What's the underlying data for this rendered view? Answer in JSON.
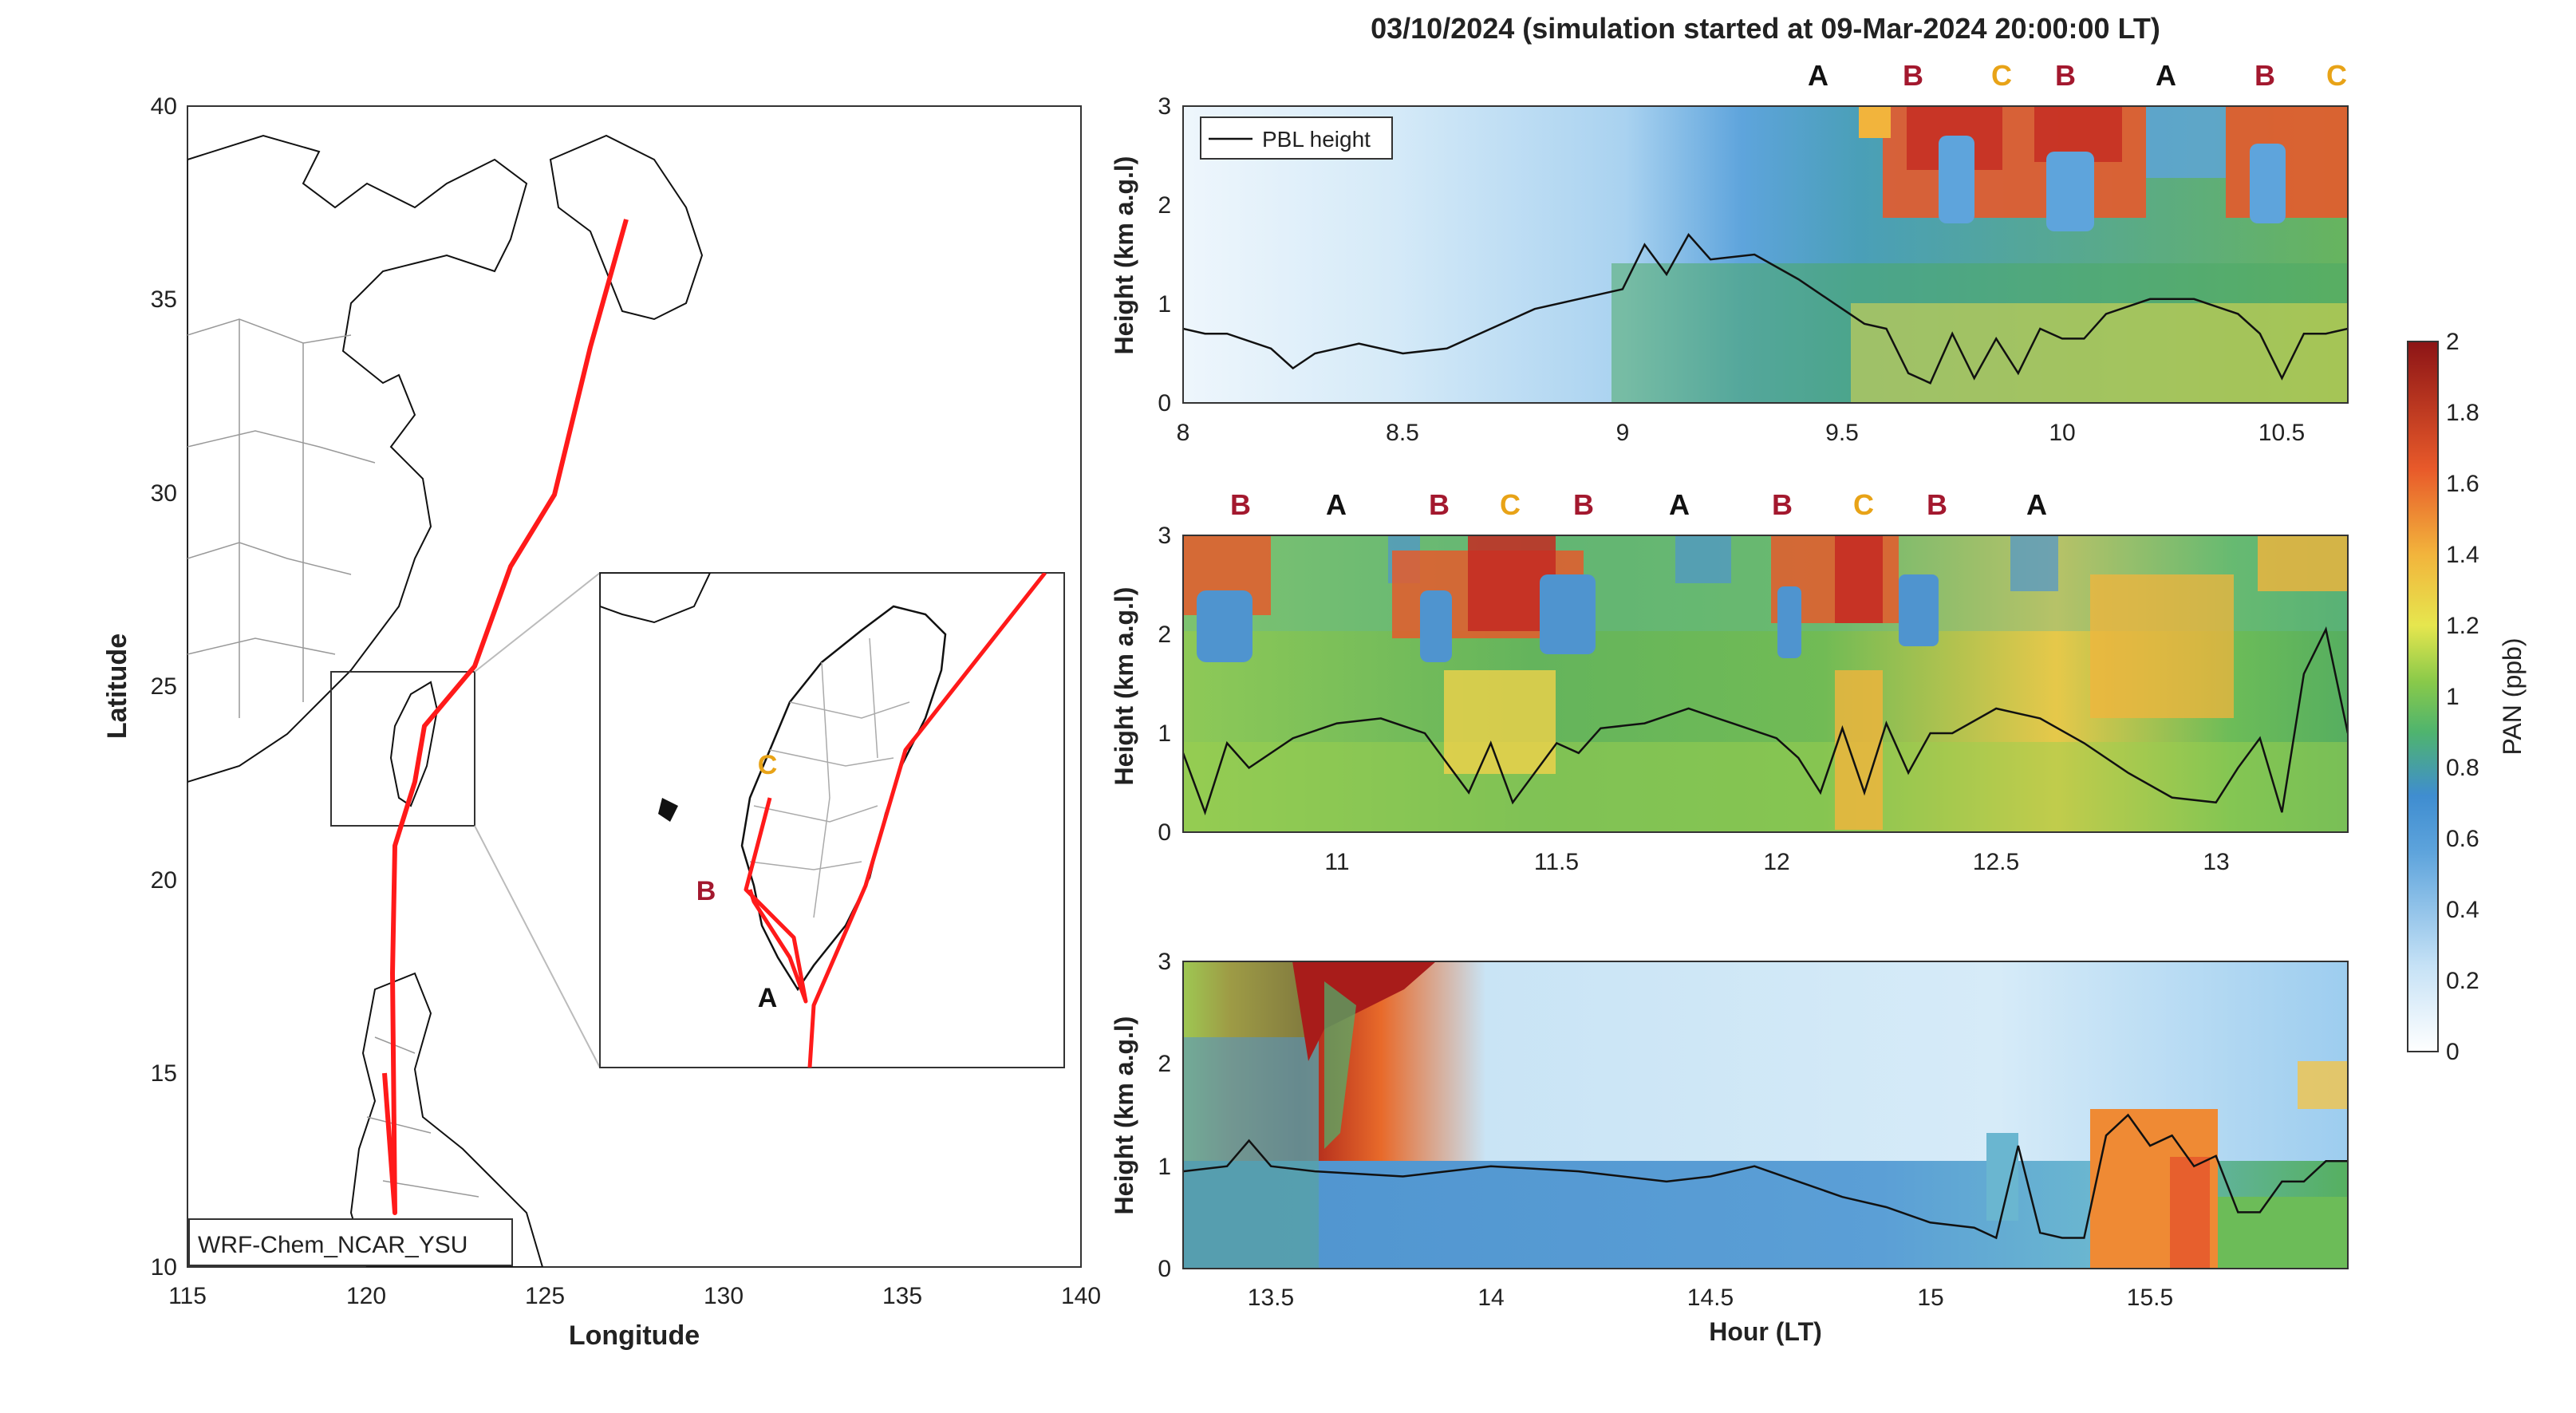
{
  "figure_title": "03/10/2024 (simulation started at 09-Mar-2024 20:00:00 LT)",
  "colors": {
    "track": "#ff1a1a",
    "marker_A": "#111111",
    "marker_B": "#a3182e",
    "marker_C": "#e8a317"
  },
  "map": {
    "xlabel": "Longitude",
    "ylabel": "Latitude",
    "xticks": [
      "115",
      "120",
      "125",
      "130",
      "135",
      "140"
    ],
    "yticks": [
      "40",
      "35",
      "30",
      "25",
      "20",
      "15",
      "10"
    ],
    "model_label": "WRF-Chem_NCAR_YSU",
    "inset_labels": [
      "C",
      "B",
      "A"
    ]
  },
  "panels": [
    {
      "xticks": [
        "8",
        "8.5",
        "9",
        "9.5",
        "10",
        "10.5"
      ],
      "yticks": [
        "0",
        "1",
        "2",
        "3"
      ],
      "ylabel": "Height (km a.g.l)",
      "legend": "PBL height",
      "markers": [
        "A",
        "B",
        "C",
        "B",
        "A",
        "B",
        "C"
      ]
    },
    {
      "xticks": [
        "11",
        "11.5",
        "12",
        "12.5",
        "13"
      ],
      "yticks": [
        "0",
        "1",
        "2",
        "3"
      ],
      "ylabel": "Height (km a.g.l)",
      "markers": [
        "B",
        "A",
        "B",
        "C",
        "B",
        "A",
        "B",
        "C",
        "B",
        "A"
      ]
    },
    {
      "xticks": [
        "13.5",
        "14",
        "14.5",
        "15",
        "15.5"
      ],
      "yticks": [
        "0",
        "1",
        "2",
        "3"
      ],
      "ylabel": "Height (km a.g.l)",
      "xlabel": "Hour (LT)"
    }
  ],
  "colorbar": {
    "label": "PAN (ppb)",
    "ticks": [
      "2",
      "1.8",
      "1.6",
      "1.4",
      "1.2",
      "1",
      "0.8",
      "0.6",
      "0.4",
      "0.2",
      "0"
    ]
  },
  "chart_data": [
    {
      "type": "line",
      "title": "",
      "xlabel": "Longitude",
      "ylabel": "Latitude",
      "xlim": [
        115,
        140
      ],
      "ylim": [
        10,
        40
      ],
      "series": [
        {
          "x": [
            127.0,
            126.2,
            125.0,
            123.5,
            122.0,
            121.6,
            121.1,
            120.9,
            120.9,
            121.0,
            120.8
          ],
          "y": [
            37.0,
            33.5,
            30.0,
            27.0,
            25.0,
            24.0,
            23.2,
            22.0,
            20.0,
            17.0,
            15.5
          ]
        }
      ]
    },
    {
      "type": "heatmap",
      "xlabel": "",
      "ylabel": "Height (km a.g.l)",
      "xlim": [
        8,
        10.65
      ],
      "ylim": [
        0,
        3
      ],
      "series": [
        {
          "name": "PBL height",
          "x": [
            8.0,
            8.05,
            8.1,
            8.2,
            8.25,
            8.3,
            8.4,
            8.5,
            8.6,
            8.7,
            8.8,
            8.9,
            9.0,
            9.05,
            9.1,
            9.15,
            9.2,
            9.3,
            9.4,
            9.5,
            9.55,
            9.6,
            9.65,
            9.7,
            9.75,
            9.8,
            9.85,
            9.9,
            9.95,
            10.0,
            10.05,
            10.1,
            10.2,
            10.3,
            10.4,
            10.45,
            10.5,
            10.55,
            10.6,
            10.65
          ],
          "y": [
            0.75,
            0.7,
            0.7,
            0.55,
            0.35,
            0.5,
            0.6,
            0.5,
            0.55,
            0.75,
            0.95,
            1.05,
            1.15,
            1.6,
            1.3,
            1.7,
            1.45,
            1.5,
            1.25,
            0.95,
            0.8,
            0.75,
            0.3,
            0.2,
            0.7,
            0.25,
            0.65,
            0.3,
            0.75,
            0.65,
            0.65,
            0.9,
            1.05,
            1.05,
            0.9,
            0.7,
            0.25,
            0.7,
            0.7,
            0.75
          ]
        }
      ]
    },
    {
      "type": "heatmap",
      "xlabel": "",
      "ylabel": "Height (km a.g.l)",
      "xlim": [
        10.65,
        13.3
      ],
      "ylim": [
        0,
        3
      ],
      "series": [
        {
          "name": "PBL height",
          "x": [
            10.65,
            10.7,
            10.75,
            10.8,
            10.9,
            11.0,
            11.1,
            11.2,
            11.3,
            11.35,
            11.4,
            11.5,
            11.55,
            11.6,
            11.7,
            11.8,
            11.9,
            12.0,
            12.05,
            12.1,
            12.15,
            12.2,
            12.25,
            12.3,
            12.35,
            12.4,
            12.5,
            12.6,
            12.7,
            12.8,
            12.9,
            13.0,
            13.05,
            13.1,
            13.15,
            13.2,
            13.25,
            13.3
          ],
          "y": [
            0.8,
            0.2,
            0.9,
            0.65,
            0.95,
            1.1,
            1.15,
            1.0,
            0.4,
            0.9,
            0.3,
            0.9,
            0.8,
            1.05,
            1.1,
            1.25,
            1.1,
            0.95,
            0.75,
            0.4,
            1.05,
            0.4,
            1.1,
            0.6,
            1.0,
            1.0,
            1.25,
            1.15,
            0.9,
            0.6,
            0.35,
            0.3,
            0.65,
            0.95,
            0.2,
            1.6,
            2.05,
            1.0
          ]
        }
      ]
    },
    {
      "type": "heatmap",
      "xlabel": "Hour (LT)",
      "ylabel": "Height (km a.g.l)",
      "xlim": [
        13.3,
        15.95
      ],
      "ylim": [
        0,
        3
      ],
      "series": [
        {
          "name": "PBL height",
          "x": [
            13.3,
            13.4,
            13.45,
            13.5,
            13.6,
            13.8,
            14.0,
            14.2,
            14.4,
            14.5,
            14.6,
            14.7,
            14.8,
            14.9,
            15.0,
            15.1,
            15.15,
            15.2,
            15.25,
            15.3,
            15.35,
            15.4,
            15.45,
            15.5,
            15.55,
            15.6,
            15.65,
            15.7,
            15.75,
            15.8,
            15.85,
            15.9,
            15.95
          ],
          "y": [
            0.95,
            1.0,
            1.25,
            1.0,
            0.95,
            0.9,
            1.0,
            0.95,
            0.85,
            0.9,
            1.0,
            0.85,
            0.7,
            0.6,
            0.45,
            0.4,
            0.3,
            1.2,
            0.35,
            0.3,
            0.3,
            1.3,
            1.5,
            1.2,
            1.3,
            1.0,
            1.1,
            0.55,
            0.55,
            0.85,
            0.85,
            1.05,
            1.05
          ]
        }
      ]
    }
  ]
}
